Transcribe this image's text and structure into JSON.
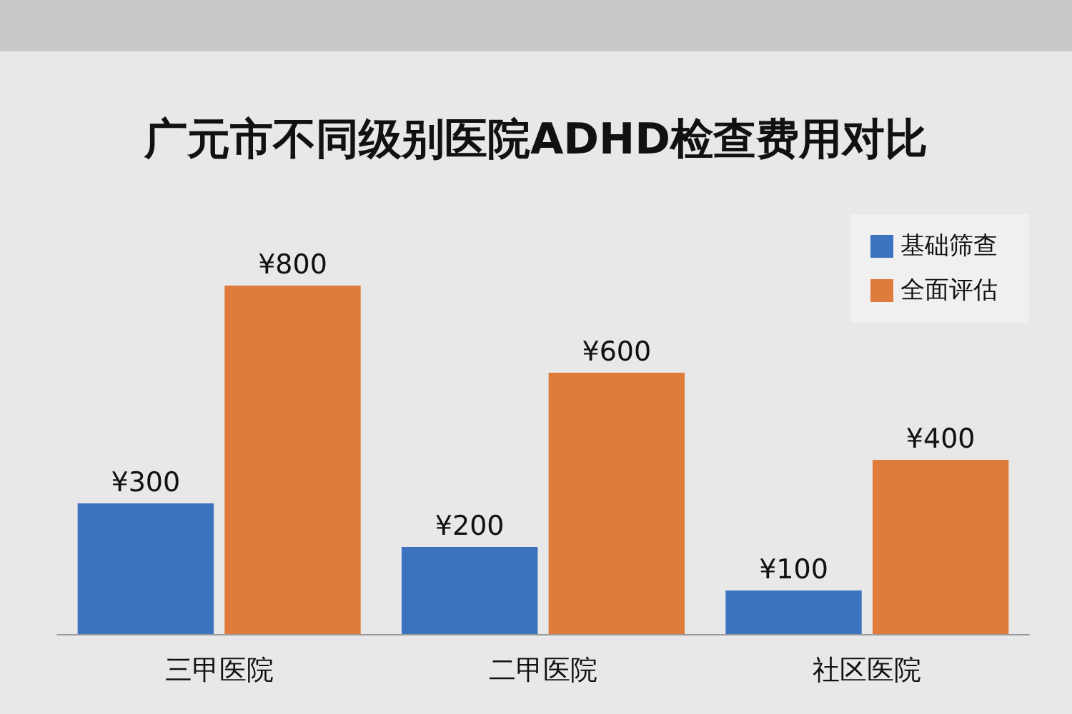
{
  "chart_data": {
    "type": "bar",
    "title": "广元市不同级别医院ADHD检查费用对比",
    "categories": [
      "三甲医院",
      "二甲医院",
      "社区医院"
    ],
    "series": [
      {
        "name": "基础筛查",
        "color": "#3b73c1",
        "values": [
          300,
          200,
          100
        ],
        "value_labels": [
          "¥300",
          "¥200",
          "¥100"
        ]
      },
      {
        "name": "全面评估",
        "color": "#e07c3b",
        "values": [
          800,
          600,
          400
        ],
        "value_labels": [
          "¥800",
          "¥600",
          "¥400"
        ]
      }
    ],
    "legend": "top right"
  }
}
